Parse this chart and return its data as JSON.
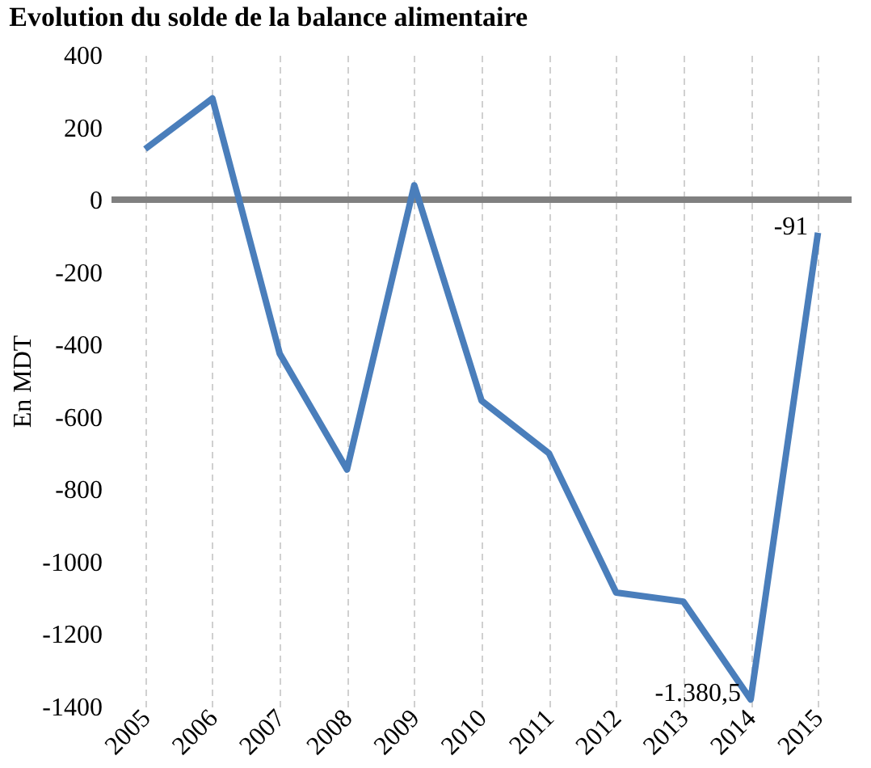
{
  "chart_data": {
    "type": "line",
    "title": "Evolution du solde de la balance alimentaire",
    "ylabel": "En MDT",
    "categories": [
      "2005",
      "2006",
      "2007",
      "2008",
      "2009",
      "2010",
      "2011",
      "2012",
      "2013",
      "2014",
      "2015"
    ],
    "series": [
      {
        "color": "#4a7ebb",
        "values": [
          140,
          280,
          -425,
          -745,
          40,
          -555,
          -700,
          -1085,
          -1110,
          -1380.5,
          -91
        ],
        "value_labels": [
          null,
          null,
          null,
          null,
          null,
          null,
          null,
          null,
          null,
          "-1.380,5",
          "-91"
        ]
      }
    ],
    "ylim": [
      -1400,
      400
    ],
    "yticks": [
      {
        "value": -1400,
        "label": "-1400"
      },
      {
        "value": -1200,
        "label": "-1200"
      },
      {
        "value": -1000,
        "label": "-1000"
      },
      {
        "value": -800,
        "label": "-800"
      },
      {
        "value": -600,
        "label": "-600"
      },
      {
        "value": -400,
        "label": "-400"
      },
      {
        "value": -200,
        "label": "-200"
      },
      {
        "value": 0,
        "label": "0"
      },
      {
        "value": 200,
        "label": "200"
      },
      {
        "value": 400,
        "label": "400"
      }
    ],
    "ref_lines": [
      {
        "axis": "y",
        "value": 0,
        "color": "#808080"
      }
    ],
    "grid": "x",
    "marker": "none",
    "line_style": "solid"
  }
}
